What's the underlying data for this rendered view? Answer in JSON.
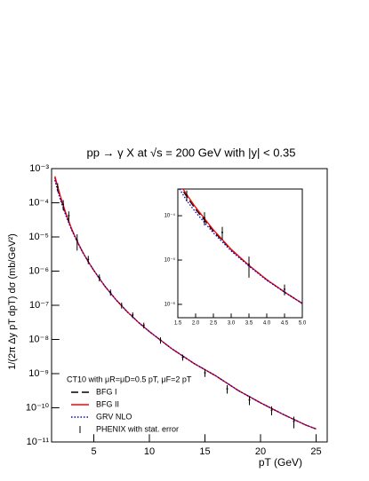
{
  "chart_data": {
    "type": "line",
    "title": "pp → γ X at √s = 200 GeV with |y| < 0.35",
    "xlabel": "pT (GeV)",
    "ylabel": "1/(2π Δy pT dpT) dσ (mb/GeV²)",
    "legend_title": "CT10 with μR=μD=0.5 pT, μF=2 pT",
    "log_y": true,
    "xlim": [
      1.2,
      26
    ],
    "ylim": [
      1e-11,
      0.001
    ],
    "xticks": [
      5,
      10,
      15,
      20,
      25
    ],
    "yticks": [
      {
        "value": 0.001,
        "label": "10⁻³"
      },
      {
        "value": 0.0001,
        "label": "10⁻⁴"
      },
      {
        "value": 1e-05,
        "label": "10⁻⁵"
      },
      {
        "value": 1e-06,
        "label": "10⁻⁶"
      },
      {
        "value": 1e-07,
        "label": "10⁻⁷"
      },
      {
        "value": 1e-08,
        "label": "10⁻⁸"
      },
      {
        "value": 1e-09,
        "label": "10⁻⁹"
      },
      {
        "value": 1e-10,
        "label": "10⁻¹⁰"
      },
      {
        "value": 1e-11,
        "label": "10⁻¹¹"
      }
    ],
    "x": [
      1.5,
      1.75,
      2,
      2.5,
      3,
      3.5,
      4,
      4.5,
      5,
      6,
      7,
      8,
      9,
      10,
      12,
      14,
      16,
      18,
      20,
      22,
      24,
      25
    ],
    "series": [
      {
        "name": "BFG I",
        "color": "#000000",
        "dash": "8,4",
        "values": [
          0.00055,
          0.00027,
          0.00014,
          4.5e-05,
          1.7e-05,
          7.5e-06,
          3.6e-06,
          1.9e-06,
          1.05e-06,
          3.6e-07,
          1.45e-07,
          6.5e-08,
          3.2e-08,
          1.7e-08,
          5.4e-09,
          2e-09,
          8.5e-10,
          3.2e-10,
          1.4e-10,
          6.5e-11,
          3.2e-11,
          2.4e-11
        ]
      },
      {
        "name": "BFG II",
        "color": "#ff0000",
        "dash": "none",
        "values": [
          0.0006,
          0.0003,
          0.000155,
          4.8e-05,
          1.75e-05,
          7.6e-06,
          3.6e-06,
          1.9e-06,
          1.05e-06,
          3.6e-07,
          1.45e-07,
          6.5e-08,
          3.2e-08,
          1.7e-08,
          5.4e-09,
          2e-09,
          8.5e-10,
          3.2e-10,
          1.4e-10,
          6.5e-11,
          3.2e-11,
          2.4e-11
        ]
      },
      {
        "name": "GRV NLO",
        "color": "#0000cc",
        "dash": "1.5,2",
        "values": [
          0.00046,
          0.00022,
          0.00012,
          4.1e-05,
          1.6e-05,
          7.3e-06,
          3.5e-06,
          1.88e-06,
          1.04e-06,
          3.6e-07,
          1.45e-07,
          6.5e-08,
          3.2e-08,
          1.7e-08,
          5.4e-09,
          2e-09,
          8.5e-10,
          3.2e-10,
          1.4e-10,
          6.5e-11,
          3.2e-11,
          2.4e-11
        ]
      }
    ],
    "points": {
      "name": "PHENIX with stat. error",
      "x": [
        1.75,
        2.25,
        2.75,
        3.5,
        4.5,
        5.5,
        6.5,
        7.5,
        8.5,
        9.5,
        11,
        13,
        15,
        17,
        19,
        21,
        23
      ],
      "values": [
        0.00029,
        9e-05,
        4.2e-05,
        8e-06,
        2.2e-06,
        6.5e-07,
        2.4e-07,
        1e-07,
        5.2e-08,
        2.6e-08,
        9.5e-09,
        3e-09,
        1.05e-09,
        3.6e-10,
        1.7e-10,
        8.5e-11,
        4e-11
      ],
      "errors": [
        8e-05,
        3e-05,
        1.4e-05,
        4e-06,
        6e-07,
        1.5e-07,
        5e-08,
        2e-08,
        1e-08,
        5e-09,
        2e-09,
        6e-10,
        2.5e-10,
        1e-10,
        5e-11,
        2.5e-11,
        1.5e-11
      ]
    },
    "inset": {
      "xlim": [
        1.5,
        5
      ],
      "ylim": [
        5e-07,
        0.0004
      ],
      "xticks": [
        1.5,
        {
          "value": 2,
          "label": "2.0"
        },
        2.5,
        {
          "value": 3,
          "label": "3.0"
        },
        3.5,
        {
          "value": 4,
          "label": "4.0"
        },
        4.5,
        {
          "value": 5,
          "label": "5.0"
        }
      ],
      "yticks": [
        {
          "value": 0.0001,
          "label": "10⁻⁴"
        },
        {
          "value": 1e-05,
          "label": "10⁻⁵"
        },
        {
          "value": 1e-06,
          "label": "10⁻⁶"
        }
      ]
    }
  }
}
